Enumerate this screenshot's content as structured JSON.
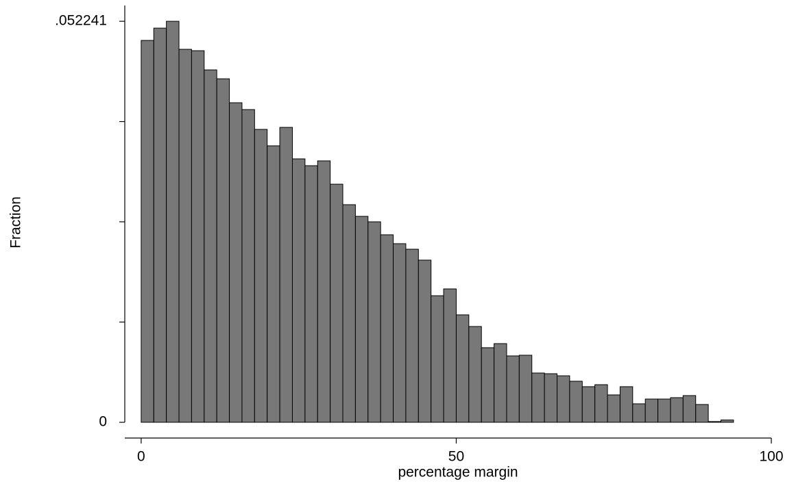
{
  "chart_data": {
    "type": "histogram",
    "x_label": "percentage margin",
    "y_label": "Fraction",
    "bins": [
      0,
      2,
      4,
      6,
      8,
      10,
      12,
      14,
      16,
      18,
      20,
      22,
      24,
      26,
      28,
      30,
      32,
      34,
      36,
      38,
      40,
      42,
      44,
      46,
      48,
      50,
      52,
      54,
      56,
      58,
      60,
      62,
      64,
      66,
      68,
      70,
      72,
      74,
      76,
      78,
      80,
      82,
      84,
      86,
      88,
      90,
      92,
      94
    ],
    "values": [
      0.04975,
      0.05135,
      0.052241,
      0.04859,
      0.04841,
      0.04591,
      0.04475,
      0.04163,
      0.04074,
      0.03816,
      0.03602,
      0.03842,
      0.03432,
      0.03343,
      0.03406,
      0.03102,
      0.02835,
      0.02683,
      0.02612,
      0.02443,
      0.02327,
      0.02255,
      0.02113,
      0.01649,
      0.01738,
      0.014,
      0.01248,
      0.00972,
      0.01025,
      0.00865,
      0.00874,
      0.00642,
      0.00633,
      0.00606,
      0.00535,
      0.00464,
      0.0049,
      0.00357,
      0.00464,
      0.00241,
      0.00303,
      0.00303,
      0.00321,
      0.00348,
      0.00232,
      0.0001,
      0.0003
    ],
    "color": "#787878",
    "xlim": [
      -2.6,
      100
    ],
    "xticks": [
      0,
      50,
      100
    ],
    "ylim": [
      0,
      0.0543
    ],
    "yticks": [
      0,
      {
        "value": 0.052241,
        "label": ".052241"
      }
    ],
    "yminor_ticks": [
      0.01306,
      0.02612,
      0.03918
    ]
  }
}
